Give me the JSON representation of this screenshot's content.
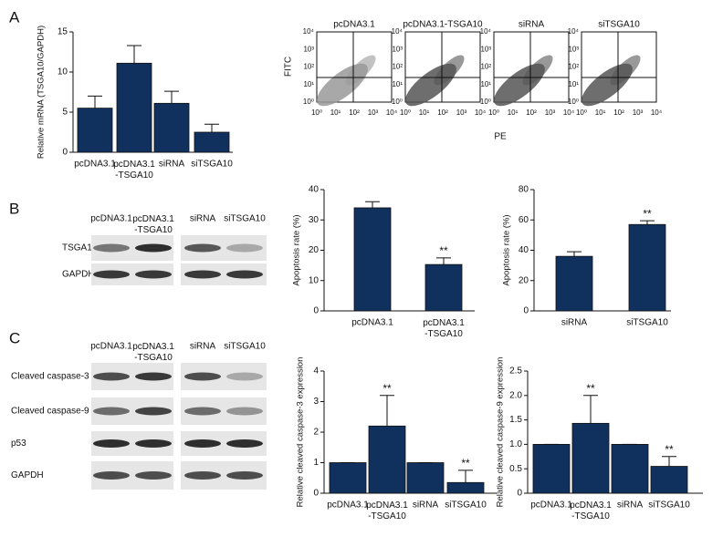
{
  "panel_labels": [
    "A",
    "B",
    "C"
  ],
  "flow": {
    "titles": [
      "pcDNA3.1",
      "pcDNA3.1-TSGA10",
      "siRNA",
      "siTSGA10"
    ],
    "y_label": "FITC",
    "x_label": "PE",
    "ticks": [
      "10⁰",
      "10¹",
      "10²",
      "10³",
      "10⁴"
    ]
  },
  "blots": {
    "B": {
      "columns": [
        "pcDNA3.1",
        "pcDNA3.1\n-TSGA10",
        "siRNA",
        "siTSGA10"
      ],
      "rows": [
        "TSGA10",
        "GAPDH"
      ]
    },
    "C": {
      "columns": [
        "pcDNA3.1",
        "pcDNA3.1\n-TSGA10",
        "siRNA",
        "siTSGA10"
      ],
      "rows": [
        "Cleaved caspase-3",
        "Cleaved caspase-9",
        "p53",
        "GAPDH"
      ]
    }
  },
  "chart_data": [
    {
      "type": "bar",
      "y_label": "Relative mRNA (TSGA10/GAPDH)",
      "categories": [
        "pcDNA3.1",
        "pcDNA3.1\n-TSGA10",
        "siRNA",
        "siTSGA10"
      ],
      "values": [
        5.5,
        11.1,
        6.1,
        2.5
      ],
      "errors": [
        1.5,
        2.2,
        1.5,
        1.0
      ],
      "color": "#10305e",
      "ylim": [
        0,
        15
      ],
      "yticks": [
        0,
        5,
        10,
        15
      ]
    },
    {
      "type": "bar",
      "y_label": "Apoptosis rate (%)",
      "categories": [
        "pcDNA3.1",
        "pcDNA3.1\n-TSGA10"
      ],
      "values": [
        34,
        15.3
      ],
      "errors": [
        2,
        2.2
      ],
      "annotations": [
        null,
        "**"
      ],
      "color": "#10305e",
      "ylim": [
        0,
        40
      ],
      "yticks": [
        0,
        10,
        20,
        30,
        40
      ]
    },
    {
      "type": "bar",
      "y_label": "Apoptosis rate (%)",
      "categories": [
        "siRNA",
        "siTSGA10"
      ],
      "values": [
        36,
        57
      ],
      "errors": [
        3,
        2.5
      ],
      "annotations": [
        null,
        "**"
      ],
      "color": "#10305e",
      "ylim": [
        0,
        80
      ],
      "yticks": [
        0,
        20,
        40,
        60,
        80
      ]
    },
    {
      "type": "bar",
      "y_label": "Relative cleaved caspase-3 expression",
      "categories": [
        "pcDNA3.1",
        "pcDNA3.1\n-TSGA10",
        "siRNA",
        "siTSGA10"
      ],
      "values": [
        1,
        2.2,
        1,
        0.35
      ],
      "errors": [
        0,
        1.0,
        0,
        0.4
      ],
      "annotations": [
        null,
        "**",
        null,
        "**"
      ],
      "color": "#10305e",
      "ylim": [
        0,
        4
      ],
      "yticks": [
        0,
        1,
        2,
        3,
        4
      ]
    },
    {
      "type": "bar",
      "y_label": "Relative cleaved caspase-9 expression",
      "categories": [
        "pcDNA3.1",
        "pcDNA3.1\n-TSGA10",
        "siRNA",
        "siTSGA10"
      ],
      "values": [
        1,
        1.43,
        1,
        0.55
      ],
      "errors": [
        0,
        0.57,
        0,
        0.2
      ],
      "annotations": [
        null,
        "**",
        null,
        "**"
      ],
      "color": "#10305e",
      "ylim": [
        0,
        2.5
      ],
      "yticks": [
        0,
        0.5,
        {
          "value": 1,
          "label": "1.0"
        },
        1.5,
        {
          "value": 2,
          "label": "2.0"
        },
        2.5
      ]
    }
  ]
}
